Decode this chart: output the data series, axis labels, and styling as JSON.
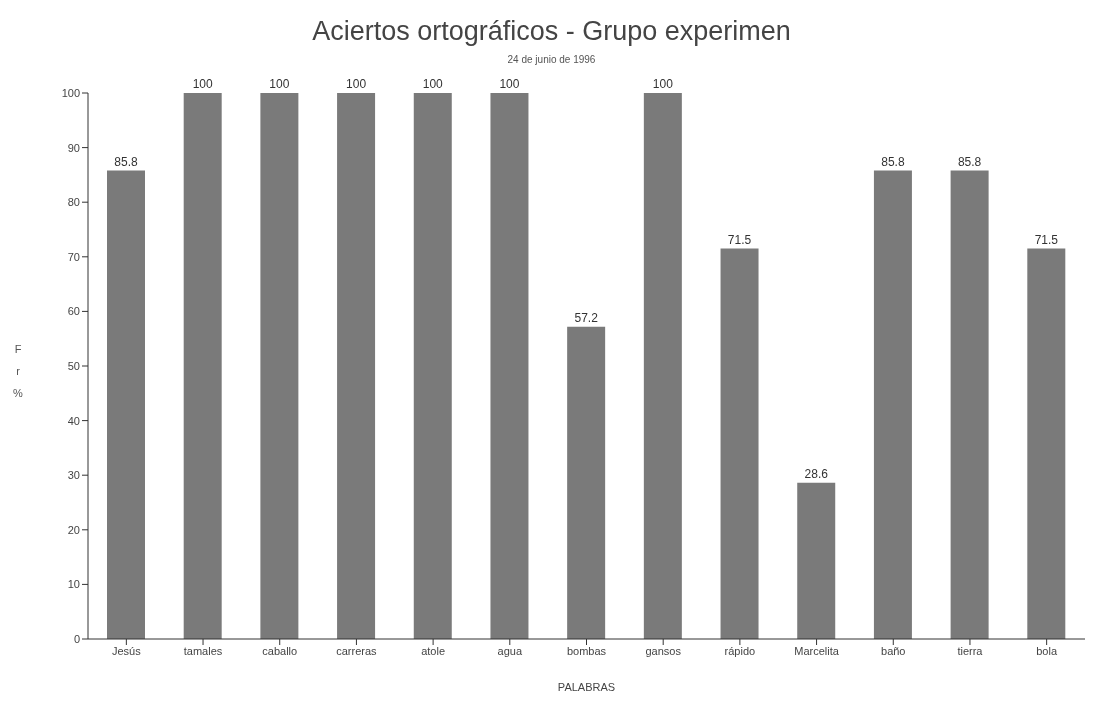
{
  "chart_data": {
    "type": "bar",
    "title": "Aciertos ortográficos - Grupo experimen",
    "subtitle": "24 de junio de 1996",
    "xlabel": "PALABRAS",
    "ylabel": "Fr %",
    "categories": [
      "Jesús",
      "tamales",
      "caballo",
      "carreras",
      "atole",
      "agua",
      "bombas",
      "gansos",
      "rápido",
      "Marcelita",
      "baño",
      "tierra",
      "bola"
    ],
    "values": [
      85.8,
      100,
      100,
      100,
      100,
      100,
      57.2,
      100,
      71.5,
      28.6,
      85.8,
      85.8,
      71.5
    ],
    "color": "#7a7a7a",
    "ylim": [
      0,
      100
    ],
    "yticks": [
      0,
      10,
      20,
      30,
      40,
      50,
      60,
      70,
      80,
      90,
      100
    ],
    "grid": false,
    "data_labels": true
  }
}
